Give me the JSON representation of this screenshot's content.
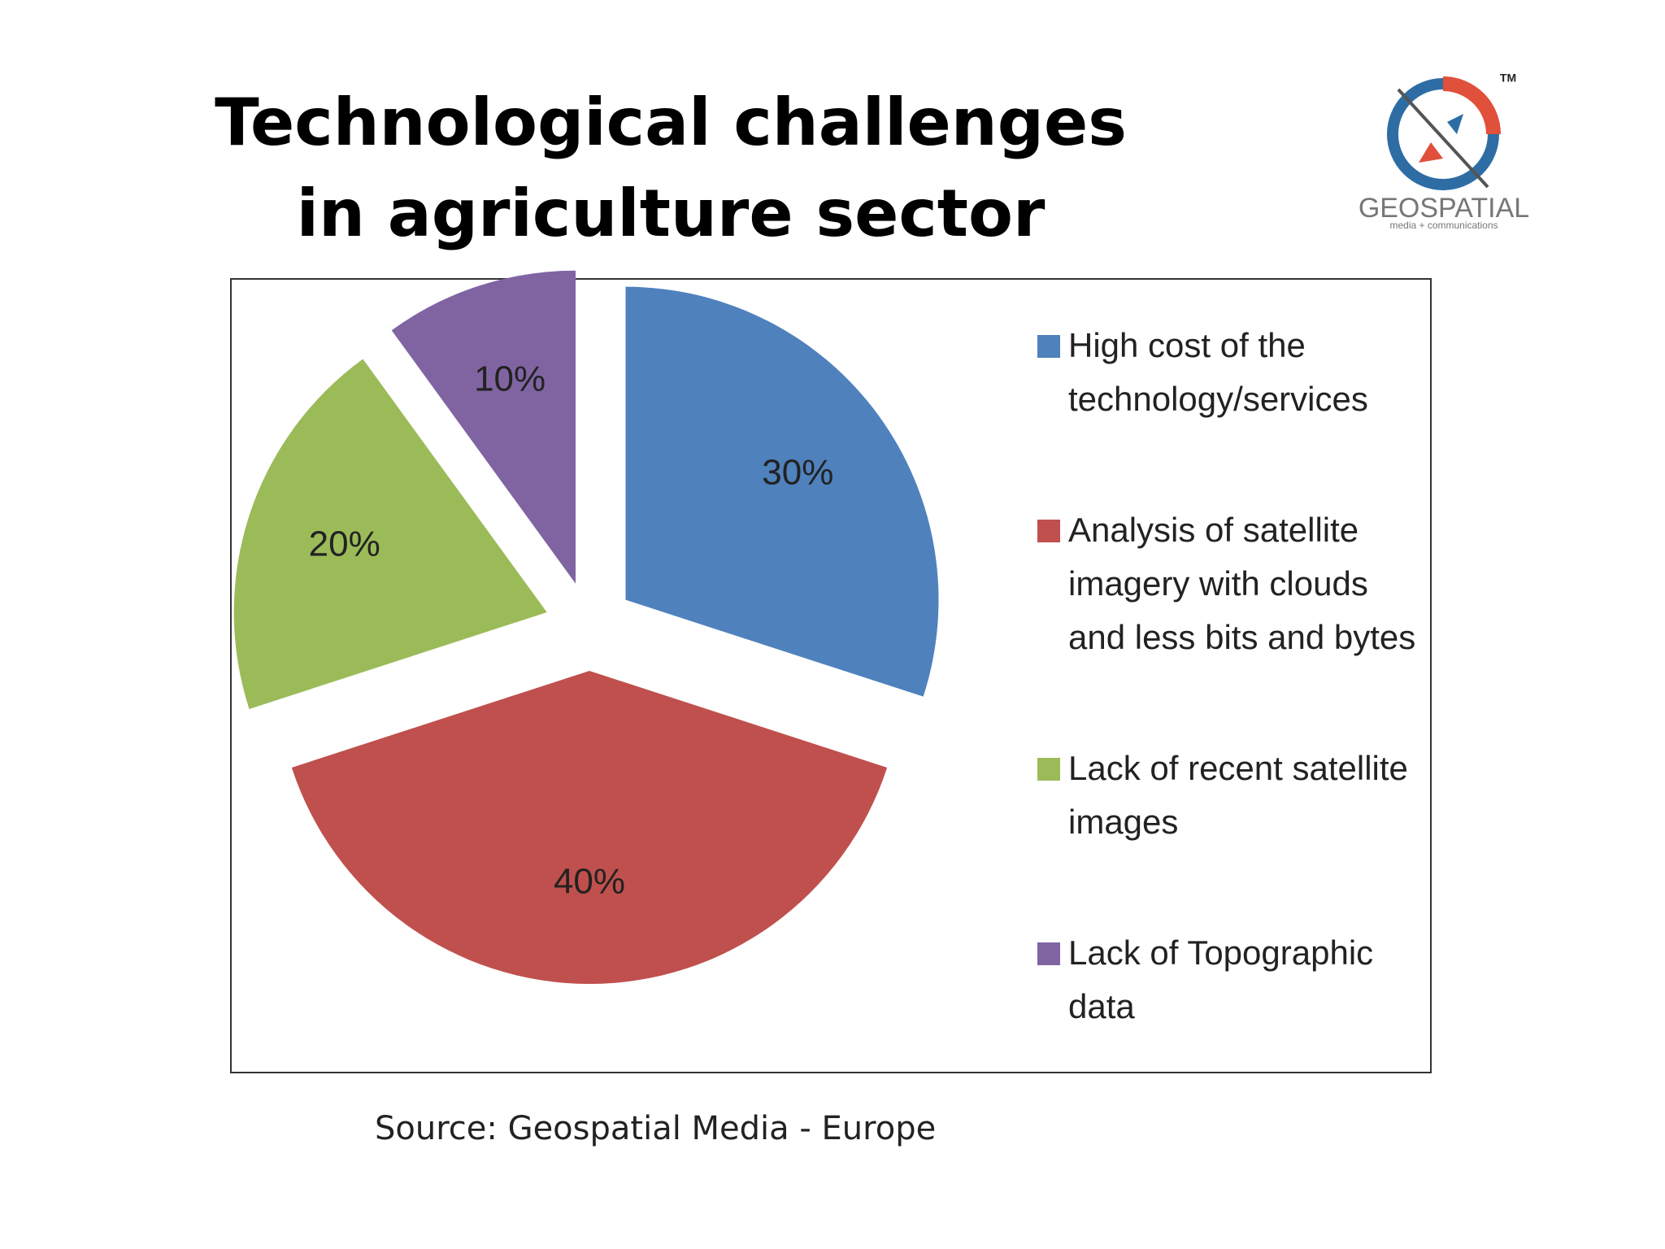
{
  "chart_data": {
    "type": "pie",
    "title": "Technological challenges in agriculture sector",
    "categories": [
      "High cost of the technology/services",
      "Analysis of satellite imagery with clouds and less bits and bytes",
      "Lack of recent satellite images",
      "Lack of Topographic data"
    ],
    "values": [
      30,
      40,
      20,
      10
    ],
    "value_labels": [
      "30%",
      "40%",
      "20%",
      "10%"
    ],
    "colors": [
      "#4f81bd",
      "#c0504d",
      "#9bbb59",
      "#8064a2"
    ],
    "legend": "right",
    "source": "Source: Geospatial Media - Europe"
  },
  "logo": {
    "name": "GEOSPATIAL",
    "tagline": "media + communications",
    "mark": "TM"
  }
}
